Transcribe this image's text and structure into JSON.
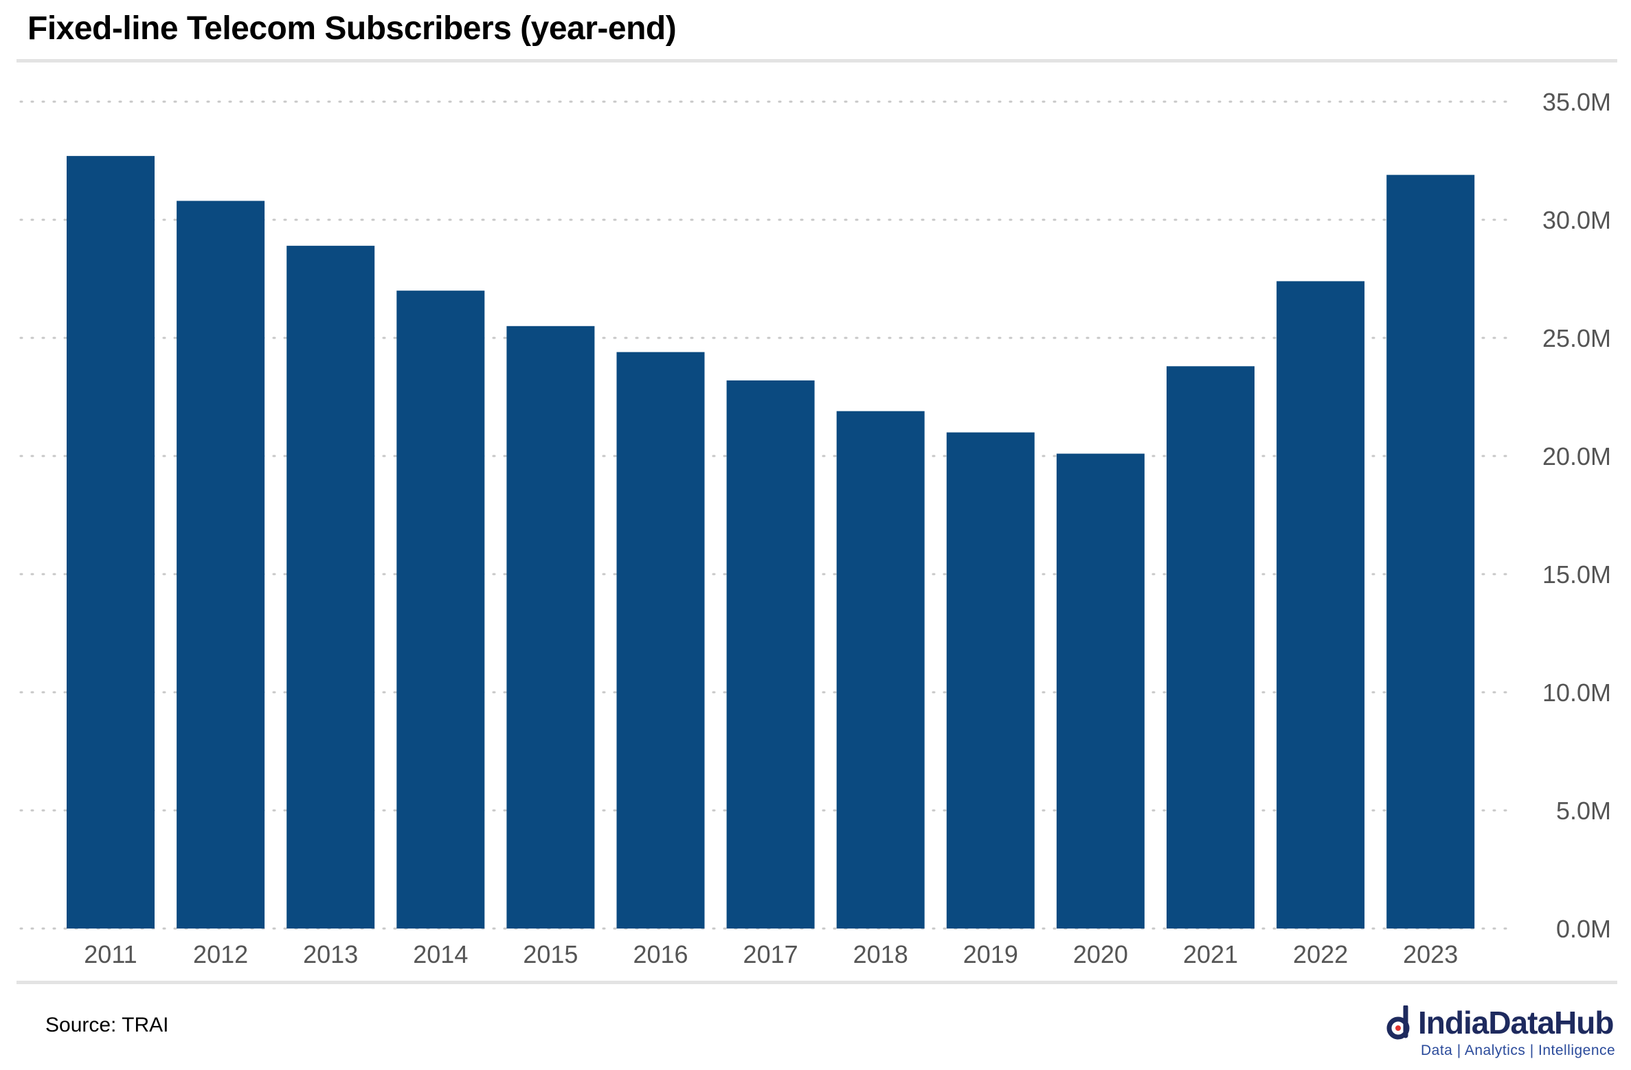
{
  "title": "Fixed-line Telecom Subscribers (year-end)",
  "source": "Source: TRAI",
  "logo": {
    "name": "IndiaDataHub",
    "tagline": "Data | Analytics | Intelligence"
  },
  "colors": {
    "bar": "#0b4a80",
    "grid": "#c8c8c8",
    "rule": "#e3e3e3",
    "tick_text": "#555555",
    "logo_text": "#1e2a5e"
  },
  "chart_data": {
    "type": "bar",
    "title": "Fixed-line Telecom Subscribers (year-end)",
    "categories": [
      "2011",
      "2012",
      "2013",
      "2014",
      "2015",
      "2016",
      "2017",
      "2018",
      "2019",
      "2020",
      "2021",
      "2022",
      "2023"
    ],
    "values": [
      32.7,
      30.8,
      28.9,
      27.0,
      25.5,
      24.4,
      23.2,
      21.9,
      21.0,
      20.1,
      23.8,
      27.4,
      31.9
    ],
    "unit": "M",
    "ylim": [
      0,
      35
    ],
    "yticks": [
      "0.0M",
      "5.0M",
      "10.0M",
      "15.0M",
      "20.0M",
      "25.0M",
      "30.0M",
      "35.0M"
    ],
    "ytick_values": [
      0,
      5,
      10,
      15,
      20,
      25,
      30,
      35
    ],
    "yaxis_position": "right",
    "grid": "horizontal-dotted",
    "legend": "none"
  }
}
